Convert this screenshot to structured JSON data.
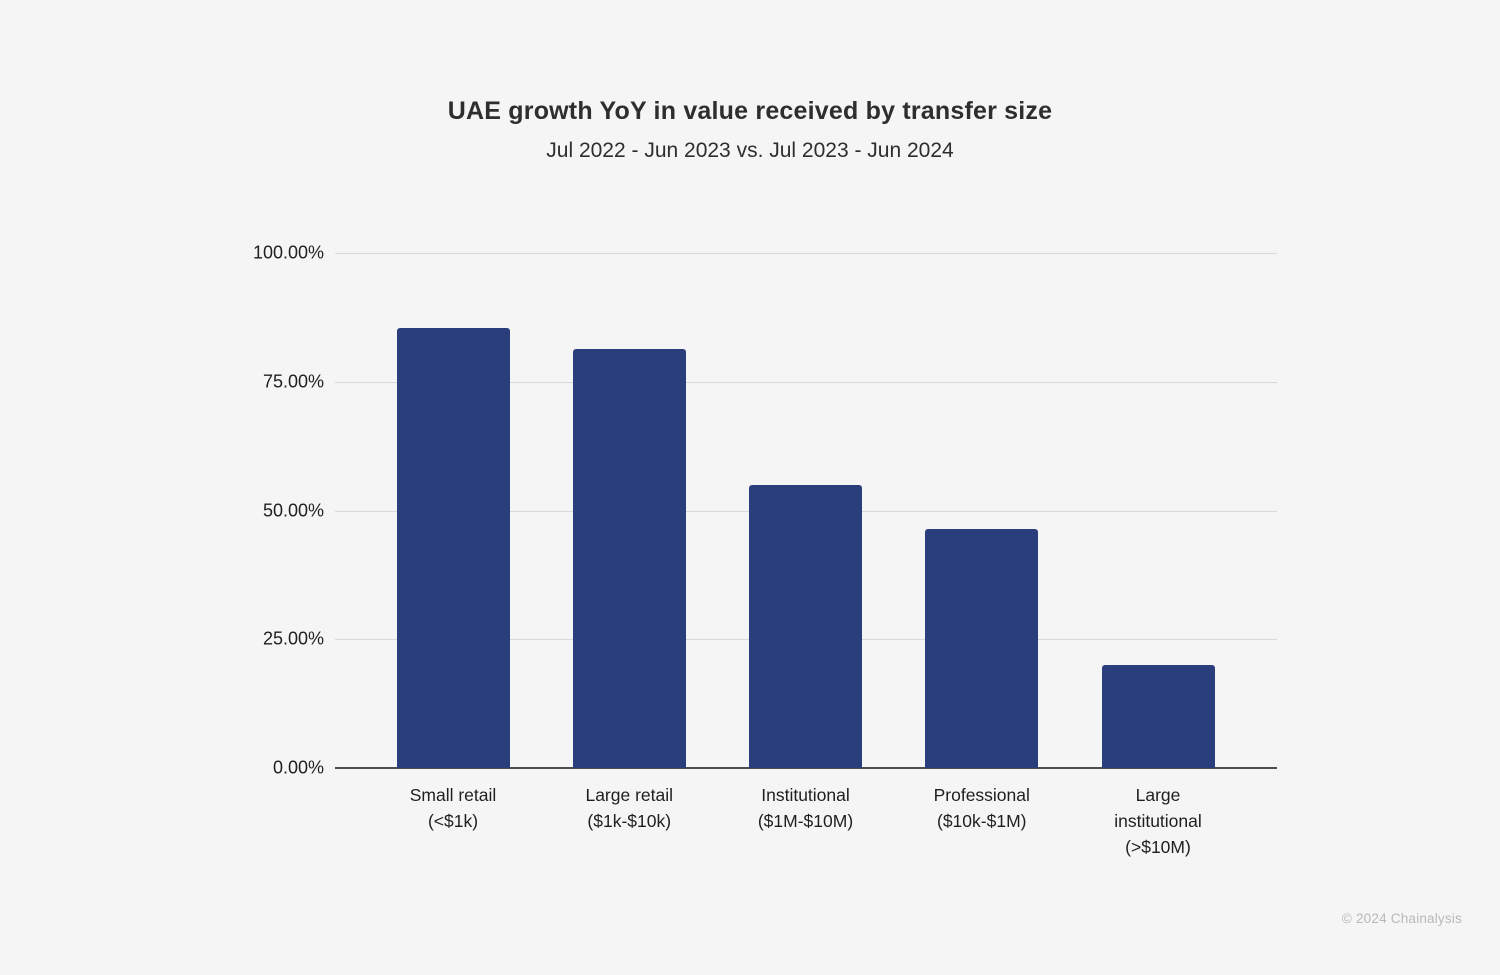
{
  "page": {
    "background_color": "#f5f5f6",
    "footer_text": "© 2024 Chainalysis"
  },
  "chart_data": {
    "type": "bar",
    "title": "UAE growth YoY in value received by transfer size",
    "subtitle": "Jul 2022 - Jun 2023 vs. Jul 2023 - Jun 2024",
    "categories": [
      "Small retail\n(<$1k)",
      "Large retail\n($1k-$10k)",
      "Institutional\n($1M-$10M)",
      "Professional\n($10k-$1M)",
      "Large\ninstitutional\n(>$10M)"
    ],
    "values": [
      85.4,
      81.4,
      55.0,
      46.4,
      20.0
    ],
    "unit": "%",
    "xlabel": "",
    "ylabel": "",
    "ylim": [
      0,
      100
    ],
    "yticks": [
      100,
      75,
      50,
      25,
      0
    ],
    "ytick_labels": [
      "100.00%",
      "75.00%",
      "50.00%",
      "25.00%",
      "0.00%"
    ],
    "bar_color": "#2b3e7c",
    "gridline_color": "#d9d9da",
    "axis_line_color": "#4d4d4d",
    "grid": true,
    "legend_position": "none"
  }
}
